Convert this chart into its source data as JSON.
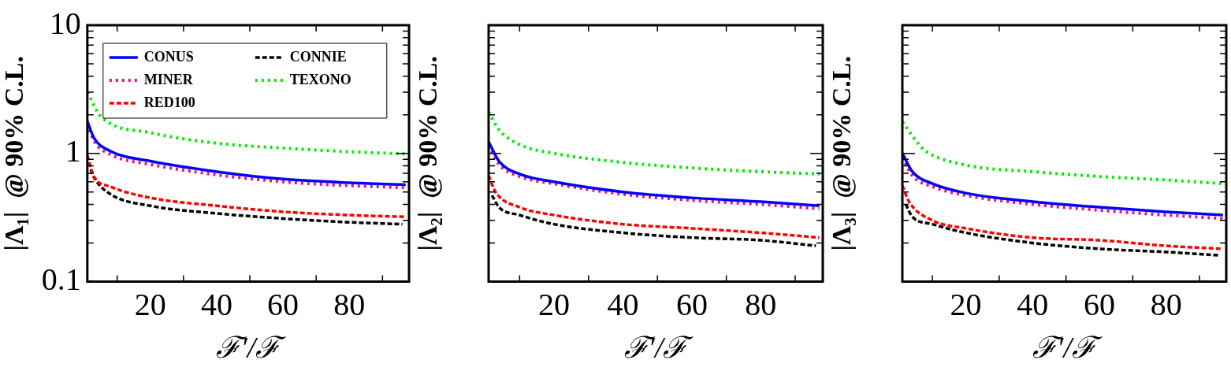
{
  "chart_data": [
    {
      "type": "line",
      "xlabel": "ℱ′/ℱ",
      "ylabel": "|Λ₁|  @ 90% C.L.",
      "log": "y",
      "grid": false,
      "legend": "top",
      "xlim": [
        1,
        98
      ],
      "ylim": [
        0.1,
        10
      ],
      "xticks": [
        {
          "value": 10,
          "label": null
        },
        20,
        {
          "value": 30,
          "label": null
        },
        40,
        {
          "value": 50,
          "label": null
        },
        60,
        {
          "value": 70,
          "label": null
        },
        80,
        {
          "value": 90,
          "label": null
        }
      ],
      "yticks": [
        0.1,
        {
          "value": 0.2,
          "label": null
        },
        {
          "value": 0.3,
          "label": null
        },
        {
          "value": 0.4,
          "label": null
        },
        {
          "value": 0.5,
          "label": null
        },
        {
          "value": 0.6,
          "label": null
        },
        {
          "value": 0.7,
          "label": null
        },
        {
          "value": 0.8,
          "label": null
        },
        {
          "value": 0.9,
          "label": null
        },
        1,
        {
          "value": 2,
          "label": null
        },
        {
          "value": 3,
          "label": null
        },
        {
          "value": 4,
          "label": null
        },
        {
          "value": 5,
          "label": null
        },
        {
          "value": 6,
          "label": null
        },
        {
          "value": 7,
          "label": null
        },
        {
          "value": 8,
          "label": null
        },
        {
          "value": 9,
          "label": null
        },
        10
      ],
      "series": [
        {
          "name": "CONUS",
          "color": "#0000ff",
          "line_style": "solid",
          "x": [
            1,
            3,
            8,
            20,
            40,
            60,
            80,
            97
          ],
          "values": [
            1.78,
            1.32,
            1.04,
            0.87,
            0.72,
            0.63,
            0.59,
            0.57
          ]
        },
        {
          "name": "MINER",
          "color": "#e8108a",
          "line_style": "dotted",
          "x": [
            1,
            3,
            8,
            20,
            40,
            60,
            80,
            97
          ],
          "values": [
            1.7,
            1.25,
            0.98,
            0.82,
            0.68,
            0.6,
            0.56,
            0.54
          ]
        },
        {
          "name": "RED100",
          "color": "#ff0000",
          "line_style": "dashed",
          "x": [
            1,
            3,
            8,
            20,
            40,
            60,
            80,
            97
          ],
          "values": [
            0.96,
            0.66,
            0.55,
            0.45,
            0.39,
            0.35,
            0.33,
            0.32
          ]
        },
        {
          "name": "CONNIE",
          "color": "#000000",
          "line_style": "dashed",
          "x": [
            2,
            3,
            8,
            20,
            40,
            60,
            80,
            96
          ],
          "values": [
            0.75,
            0.65,
            0.48,
            0.39,
            0.34,
            0.31,
            0.29,
            0.28
          ]
        },
        {
          "name": "TEXONO",
          "color": "#00ee00",
          "line_style": "dotted",
          "x": [
            1,
            5,
            20,
            40,
            60,
            80,
            97
          ],
          "values": [
            3.0,
            1.95,
            1.45,
            1.2,
            1.1,
            1.03,
            0.99
          ]
        }
      ]
    },
    {
      "type": "line",
      "xlabel": "ℱ′/ℱ",
      "ylabel": "|Λ₂|  @ 90% C.L.",
      "log": "y",
      "grid": false,
      "tick_labels": "x",
      "xlim": [
        1,
        98
      ],
      "ylim": [
        0.1,
        10
      ],
      "xticks": [
        {
          "value": 10,
          "label": null
        },
        20,
        {
          "value": 30,
          "label": null
        },
        40,
        {
          "value": 50,
          "label": null
        },
        60,
        {
          "value": 70,
          "label": null
        },
        80,
        {
          "value": 90,
          "label": null
        }
      ],
      "yticks": [
        0.1,
        {
          "value": 0.2,
          "label": null
        },
        {
          "value": 0.3,
          "label": null
        },
        {
          "value": 0.4,
          "label": null
        },
        {
          "value": 0.5,
          "label": null
        },
        {
          "value": 0.6,
          "label": null
        },
        {
          "value": 0.7,
          "label": null
        },
        {
          "value": 0.8,
          "label": null
        },
        {
          "value": 0.9,
          "label": null
        },
        1,
        {
          "value": 2,
          "label": null
        },
        {
          "value": 3,
          "label": null
        },
        {
          "value": 4,
          "label": null
        },
        {
          "value": 5,
          "label": null
        },
        {
          "value": 6,
          "label": null
        },
        {
          "value": 7,
          "label": null
        },
        {
          "value": 8,
          "label": null
        },
        {
          "value": 9,
          "label": null
        },
        10
      ],
      "series": [
        {
          "color": "#0000ff",
          "line_style": "solid",
          "x": [
            1,
            4,
            10,
            20,
            40,
            60,
            80,
            97
          ],
          "values": [
            1.23,
            0.87,
            0.69,
            0.6,
            0.5,
            0.45,
            0.42,
            0.39
          ]
        },
        {
          "color": "#e8108a",
          "line_style": "dotted",
          "x": [
            1,
            4,
            10,
            20,
            40,
            60,
            80,
            97
          ],
          "values": [
            1.15,
            0.82,
            0.66,
            0.58,
            0.48,
            0.43,
            0.4,
            0.37
          ]
        },
        {
          "color": "#ff0000",
          "line_style": "dashed",
          "x": [
            1,
            3,
            10,
            20,
            40,
            60,
            80,
            97
          ],
          "values": [
            0.67,
            0.5,
            0.38,
            0.33,
            0.28,
            0.26,
            0.24,
            0.22
          ]
        },
        {
          "color": "#000000",
          "line_style": "dashed",
          "x": [
            2,
            4,
            10,
            20,
            40,
            60,
            80,
            96
          ],
          "values": [
            0.47,
            0.38,
            0.33,
            0.28,
            0.24,
            0.22,
            0.21,
            0.19
          ]
        },
        {
          "color": "#00ee00",
          "line_style": "dotted",
          "x": [
            1,
            4,
            10,
            20,
            40,
            60,
            80,
            97
          ],
          "values": [
            2.1,
            1.53,
            1.17,
            1.0,
            0.85,
            0.77,
            0.72,
            0.69
          ]
        }
      ]
    },
    {
      "type": "line",
      "xlabel": "ℱ′/ℱ",
      "ylabel": "|Λ₃|  @ 90% C.L.",
      "log": "y",
      "grid": false,
      "tick_labels": "x",
      "xlim": [
        1,
        98
      ],
      "ylim": [
        0.1,
        10
      ],
      "xticks": [
        {
          "value": 10,
          "label": null
        },
        20,
        {
          "value": 30,
          "label": null
        },
        40,
        {
          "value": 50,
          "label": null
        },
        60,
        {
          "value": 70,
          "label": null
        },
        80,
        {
          "value": 90,
          "label": null
        }
      ],
      "yticks": [
        0.1,
        {
          "value": 0.2,
          "label": null
        },
        {
          "value": 0.3,
          "label": null
        },
        {
          "value": 0.4,
          "label": null
        },
        {
          "value": 0.5,
          "label": null
        },
        {
          "value": 0.6,
          "label": null
        },
        {
          "value": 0.7,
          "label": null
        },
        {
          "value": 0.8,
          "label": null
        },
        {
          "value": 0.9,
          "label": null
        },
        1,
        {
          "value": 2,
          "label": null
        },
        {
          "value": 3,
          "label": null
        },
        {
          "value": 4,
          "label": null
        },
        {
          "value": 5,
          "label": null
        },
        {
          "value": 6,
          "label": null
        },
        {
          "value": 7,
          "label": null
        },
        {
          "value": 8,
          "label": null
        },
        {
          "value": 9,
          "label": null
        },
        10
      ],
      "series": [
        {
          "color": "#0000ff",
          "line_style": "solid",
          "x": [
            1,
            4,
            10,
            20,
            40,
            60,
            80,
            97
          ],
          "values": [
            1.0,
            0.72,
            0.58,
            0.49,
            0.42,
            0.38,
            0.35,
            0.33
          ]
        },
        {
          "color": "#e8108a",
          "line_style": "dotted",
          "x": [
            1,
            4,
            10,
            20,
            40,
            60,
            80,
            97
          ],
          "values": [
            0.93,
            0.67,
            0.55,
            0.47,
            0.4,
            0.36,
            0.33,
            0.31
          ]
        },
        {
          "color": "#ff0000",
          "line_style": "dashed",
          "x": [
            1,
            3,
            10,
            20,
            40,
            60,
            80,
            97
          ],
          "values": [
            0.56,
            0.42,
            0.3,
            0.26,
            0.22,
            0.21,
            0.19,
            0.18
          ]
        },
        {
          "color": "#000000",
          "line_style": "dashed",
          "x": [
            2,
            4,
            10,
            20,
            40,
            60,
            80,
            96
          ],
          "values": [
            0.4,
            0.32,
            0.28,
            0.24,
            0.2,
            0.18,
            0.17,
            0.16
          ]
        },
        {
          "color": "#00ee00",
          "line_style": "dotted",
          "x": [
            1,
            6,
            8,
            20,
            40,
            60,
            80,
            97
          ],
          "values": [
            1.76,
            1.17,
            1.04,
            0.81,
            0.72,
            0.66,
            0.62,
            0.58
          ]
        }
      ]
    }
  ]
}
